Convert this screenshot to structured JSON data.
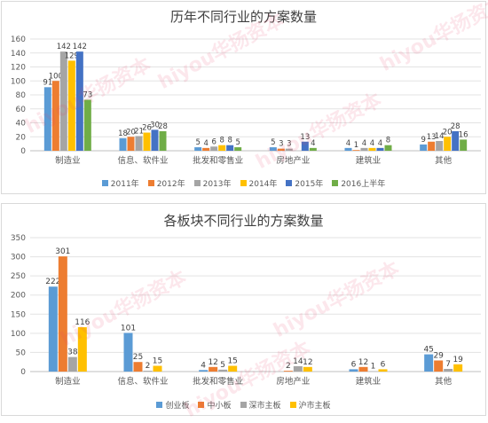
{
  "chart_data": [
    {
      "type": "bar",
      "title": "历年不同行业的方案数量",
      "categories": [
        "制造业",
        "信息、软件业",
        "批发和零售业",
        "房地产业",
        "建筑业",
        "其他"
      ],
      "ylim": [
        0,
        160
      ],
      "yticks": [
        0,
        20,
        40,
        60,
        80,
        100,
        120,
        140,
        160
      ],
      "grid": true,
      "legend_position": "bottom",
      "series": [
        {
          "name": "2011年",
          "color": "#5b9bd5",
          "values": [
            91,
            18,
            5,
            5,
            4,
            9
          ]
        },
        {
          "name": "2012年",
          "color": "#ed7d31",
          "values": [
            100,
            20,
            4,
            3,
            1,
            13
          ]
        },
        {
          "name": "2013年",
          "color": "#a5a5a5",
          "values": [
            142,
            21,
            6,
            3,
            4,
            14
          ]
        },
        {
          "name": "2014年",
          "color": "#ffc000",
          "values": [
            129,
            26,
            8,
            null,
            4,
            20
          ]
        },
        {
          "name": "2015年",
          "color": "#4472c4",
          "values": [
            142,
            30,
            8,
            13,
            4,
            28
          ]
        },
        {
          "name": "2016上半年",
          "color": "#70ad47",
          "values": [
            73,
            28,
            5,
            4,
            8,
            16
          ]
        }
      ]
    },
    {
      "type": "bar",
      "title": "各板块不同行业的方案数量",
      "categories": [
        "制造业",
        "信息、软件业",
        "批发和零售业",
        "房地产业",
        "建筑业",
        "其他"
      ],
      "ylim": [
        0,
        350
      ],
      "yticks": [
        0,
        50,
        100,
        150,
        200,
        250,
        300,
        350
      ],
      "grid": true,
      "legend_position": "bottom",
      "series": [
        {
          "name": "创业板",
          "color": "#5b9bd5",
          "values": [
            222,
            101,
            4,
            null,
            6,
            45
          ]
        },
        {
          "name": "中小板",
          "color": "#ed7d31",
          "values": [
            301,
            25,
            12,
            2,
            12,
            29
          ]
        },
        {
          "name": "深市主板",
          "color": "#a5a5a5",
          "values": [
            38,
            2,
            5,
            14,
            1,
            7
          ]
        },
        {
          "name": "沪市主板",
          "color": "#ffc000",
          "values": [
            116,
            15,
            15,
            12,
            6,
            19
          ]
        }
      ]
    }
  ],
  "watermark_text": "hiyou华扬资本"
}
